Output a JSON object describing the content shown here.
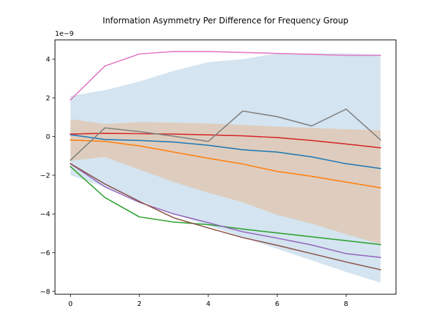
{
  "chart_data": {
    "type": "line",
    "title": "Information Asymmetry Per Difference for Frequency Group",
    "xlabel": "",
    "ylabel": "",
    "y_multiplier_label": "1e−9",
    "xlim": [
      -0.45,
      9.45
    ],
    "ylim": [
      -8.15,
      5.0
    ],
    "x_ticks": [
      0,
      2,
      4,
      6,
      8
    ],
    "x_tick_labels": [
      "0",
      "2",
      "4",
      "6",
      "8"
    ],
    "y_ticks": [
      -8,
      -6,
      -4,
      -2,
      0,
      2,
      4
    ],
    "y_tick_labels": [
      "−8",
      "−6",
      "−4",
      "−2",
      "0",
      "2",
      "4"
    ],
    "grid": false,
    "x": [
      0,
      1,
      2,
      3,
      4,
      5,
      6,
      7,
      8,
      9
    ],
    "bands": [
      {
        "color": "#a9c9e2",
        "opacity": 0.5,
        "upper": [
          2.1,
          2.4,
          2.85,
          3.4,
          3.85,
          4.0,
          4.3,
          4.3,
          4.3,
          4.25
        ],
        "lower": [
          -2.0,
          -2.6,
          -3.3,
          -4.0,
          -4.6,
          -5.2,
          -5.8,
          -6.4,
          -7.0,
          -7.55
        ]
      },
      {
        "color": "#dfc9b5",
        "opacity": 0.85,
        "upper": [
          0.9,
          0.65,
          0.75,
          0.72,
          0.68,
          0.6,
          0.52,
          0.45,
          0.38,
          0.33
        ],
        "lower": [
          -1.25,
          -1.05,
          -1.7,
          -2.35,
          -2.9,
          -3.4,
          -4.05,
          -4.5,
          -5.05,
          -5.55
        ]
      }
    ],
    "series": [
      {
        "color": "#1f77b4",
        "values": [
          0.1,
          -0.15,
          -0.2,
          -0.28,
          -0.45,
          -0.68,
          -0.8,
          -1.05,
          -1.4,
          -1.65
        ]
      },
      {
        "color": "#ff7f0e",
        "values": [
          -0.18,
          -0.25,
          -0.48,
          -0.8,
          -1.12,
          -1.42,
          -1.8,
          -2.05,
          -2.35,
          -2.65
        ]
      },
      {
        "color": "#2ca02c",
        "values": [
          -1.55,
          -3.15,
          -4.15,
          -4.42,
          -4.55,
          -4.78,
          -4.98,
          -5.18,
          -5.38,
          -5.58
        ]
      },
      {
        "color": "#d62728",
        "values": [
          0.13,
          0.17,
          0.15,
          0.13,
          0.09,
          0.04,
          -0.05,
          -0.2,
          -0.38,
          -0.58
        ]
      },
      {
        "color": "#9467bd",
        "values": [
          -1.4,
          -2.6,
          -3.4,
          -4.0,
          -4.45,
          -4.92,
          -5.25,
          -5.6,
          -6.05,
          -6.25
        ]
      },
      {
        "color": "#8c564b",
        "values": [
          -1.4,
          -2.45,
          -3.35,
          -4.2,
          -4.72,
          -5.22,
          -5.62,
          -6.05,
          -6.48,
          -6.88
        ]
      },
      {
        "color": "#e377c2",
        "values": [
          1.9,
          3.65,
          4.27,
          4.4,
          4.4,
          4.35,
          4.3,
          4.25,
          4.2,
          4.2
        ]
      },
      {
        "color": "#7f7f7f",
        "values": [
          -1.22,
          0.45,
          0.26,
          0.02,
          -0.25,
          1.32,
          1.03,
          0.55,
          1.42,
          -0.17
        ]
      }
    ]
  }
}
